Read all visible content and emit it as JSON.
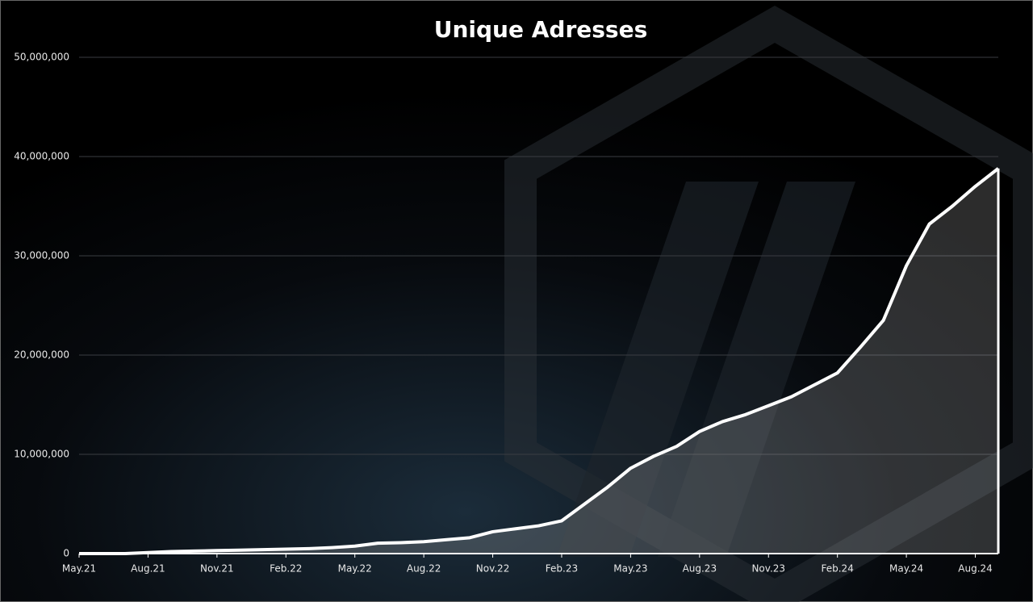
{
  "chart_data": {
    "type": "area",
    "title": "Unique Adresses",
    "categories": [
      "May.21",
      null,
      null,
      "Aug.21",
      null,
      null,
      "Nov.21",
      null,
      null,
      "Feb.22",
      null,
      null,
      "May.22",
      null,
      null,
      "Aug.22",
      null,
      null,
      "Nov.22",
      null,
      null,
      "Feb.23",
      null,
      null,
      "May.23",
      null,
      null,
      "Aug.23",
      null,
      null,
      "Nov.23",
      null,
      null,
      "Feb.24",
      null,
      null,
      "May.24",
      null,
      null,
      "Aug.24",
      null
    ],
    "series": [
      {
        "name": "Unique Adresses",
        "color": "#ffffff",
        "values": [
          0,
          0,
          0,
          100000,
          200000,
          250000,
          300000,
          350000,
          400000,
          450000,
          500000,
          600000,
          750000,
          1050000,
          1100000,
          1200000,
          1400000,
          1600000,
          2200000,
          2500000,
          2800000,
          3300000,
          5000000,
          6700000,
          8600000,
          9800000,
          10800000,
          12300000,
          13300000,
          14000000,
          14900000,
          15800000,
          17000000,
          18200000,
          20800000,
          23500000,
          29000000,
          33200000,
          35000000,
          37000000,
          38800000
        ]
      }
    ],
    "ylim": [
      0,
      50000000
    ],
    "yticks": [
      0,
      {
        "value": 10000000,
        "label": "10,000,000"
      },
      {
        "value": 20000000,
        "label": "20,000,000"
      },
      {
        "value": 30000000,
        "label": "30,000,000"
      },
      {
        "value": 40000000,
        "label": "40,000,000"
      },
      {
        "value": 50000000,
        "label": "50,000,000"
      }
    ],
    "grid": true
  }
}
